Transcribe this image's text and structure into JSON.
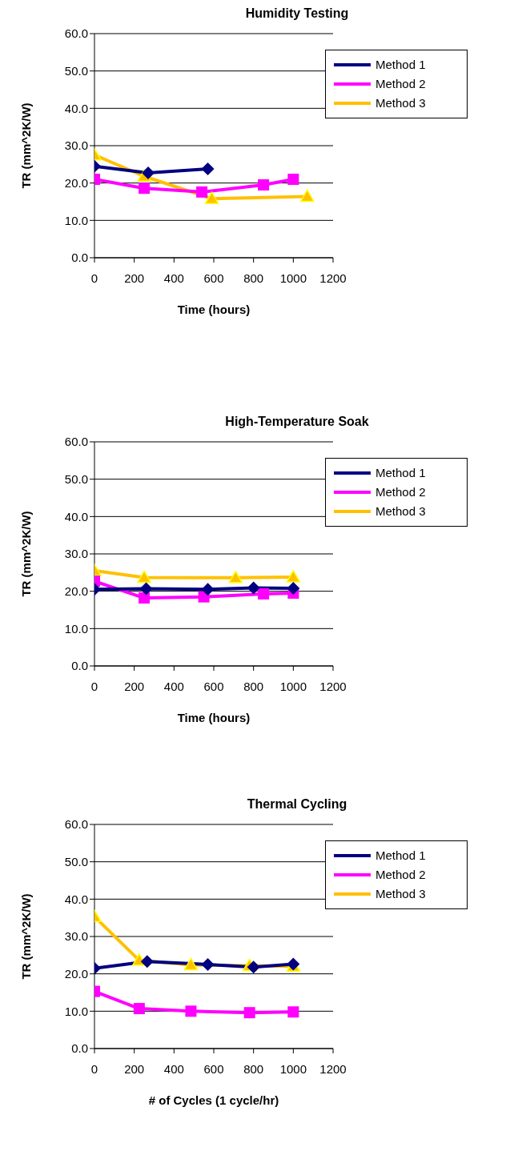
{
  "chart_data": [
    {
      "type": "line",
      "title": "Humidity Testing",
      "xlabel": "Time (hours)",
      "ylabel": "TR (mm^2K/W)",
      "xlim": [
        0,
        1200
      ],
      "xticks": [
        0,
        200,
        400,
        600,
        800,
        1000,
        1200
      ],
      "ylim": [
        0,
        60
      ],
      "yticks": [
        {
          "value": 0,
          "label": "0.0"
        },
        {
          "value": 10,
          "label": "10.0"
        },
        {
          "value": 20,
          "label": "20.0"
        },
        {
          "value": 30,
          "label": "30.0"
        },
        {
          "value": 40,
          "label": "40.0"
        },
        {
          "value": 50,
          "label": "50.0"
        },
        {
          "value": 60,
          "label": "60.0"
        }
      ],
      "grid": "y",
      "legend": "top right",
      "series": [
        {
          "name": "Method 1",
          "color": "#000080",
          "marker": "diamond",
          "x": [
            0,
            270,
            570
          ],
          "values": [
            24.5,
            22.7,
            23.8
          ]
        },
        {
          "name": "Method 2",
          "color": "#ff00ff",
          "marker": "square",
          "x": [
            0,
            250,
            540,
            850,
            1000
          ],
          "values": [
            21,
            18.6,
            17.6,
            19.5,
            21
          ]
        },
        {
          "name": "Method 3",
          "color": "#ffc000",
          "marker": "triangle",
          "x": [
            0,
            250,
            590,
            1070
          ],
          "values": [
            27.5,
            21.8,
            15.8,
            16.4
          ]
        }
      ]
    },
    {
      "type": "line",
      "title": "High-Temperature Soak",
      "xlabel": "Time (hours)",
      "ylabel": "TR (mm^2K/W)",
      "xlim": [
        0,
        1200
      ],
      "xticks": [
        0,
        200,
        400,
        600,
        800,
        1000,
        1200
      ],
      "ylim": [
        0,
        60
      ],
      "yticks": [
        {
          "value": 0,
          "label": "0.0"
        },
        {
          "value": 10,
          "label": "10.0"
        },
        {
          "value": 20,
          "label": "20.0"
        },
        {
          "value": 30,
          "label": "30.0"
        },
        {
          "value": 40,
          "label": "40.0"
        },
        {
          "value": 50,
          "label": "50.0"
        },
        {
          "value": 60,
          "label": "60.0"
        }
      ],
      "grid": "y",
      "legend": "top right",
      "series": [
        {
          "name": "Method 1",
          "color": "#000080",
          "marker": "diamond",
          "x": [
            0,
            260,
            570,
            800,
            1000
          ],
          "values": [
            20.5,
            20.7,
            20.5,
            20.9,
            20.8
          ]
        },
        {
          "name": "Method 2",
          "color": "#ff00ff",
          "marker": "square",
          "x": [
            0,
            250,
            550,
            850,
            1000
          ],
          "values": [
            22.7,
            18.2,
            18.5,
            19.3,
            19.5
          ]
        },
        {
          "name": "Method 3",
          "color": "#ffc000",
          "marker": "triangle",
          "x": [
            0,
            250,
            710,
            1000
          ],
          "values": [
            25.5,
            23.7,
            23.6,
            23.8
          ]
        }
      ]
    },
    {
      "type": "line",
      "title": "Thermal Cycling",
      "xlabel": "# of Cycles (1 cycle/hr)",
      "ylabel": "TR (mm^2K/W)",
      "xlim": [
        0,
        1200
      ],
      "xticks": [
        0,
        200,
        400,
        600,
        800,
        1000,
        1200
      ],
      "ylim": [
        0,
        60
      ],
      "yticks": [
        {
          "value": 0,
          "label": "0.0"
        },
        {
          "value": 10,
          "label": "10.0"
        },
        {
          "value": 20,
          "label": "20.0"
        },
        {
          "value": 30,
          "label": "30.0"
        },
        {
          "value": 40,
          "label": "40.0"
        },
        {
          "value": 50,
          "label": "50.0"
        },
        {
          "value": 60,
          "label": "60.0"
        }
      ],
      "grid": "y",
      "legend": "top right",
      "series": [
        {
          "name": "Method 1",
          "color": "#000080",
          "marker": "diamond",
          "x": [
            0,
            265,
            570,
            800,
            1000
          ],
          "values": [
            21.5,
            23.3,
            22.5,
            21.8,
            22.6
          ]
        },
        {
          "name": "Method 2",
          "color": "#ff00ff",
          "marker": "square",
          "x": [
            0,
            225,
            485,
            780,
            1000
          ],
          "values": [
            15.3,
            10.7,
            10,
            9.6,
            9.8
          ]
        },
        {
          "name": "Method 3",
          "color": "#ffc000",
          "marker": "triangle",
          "x": [
            0,
            225,
            485,
            780,
            1000
          ],
          "values": [
            35.3,
            23.6,
            22.4,
            22.2,
            22
          ]
        }
      ]
    }
  ]
}
